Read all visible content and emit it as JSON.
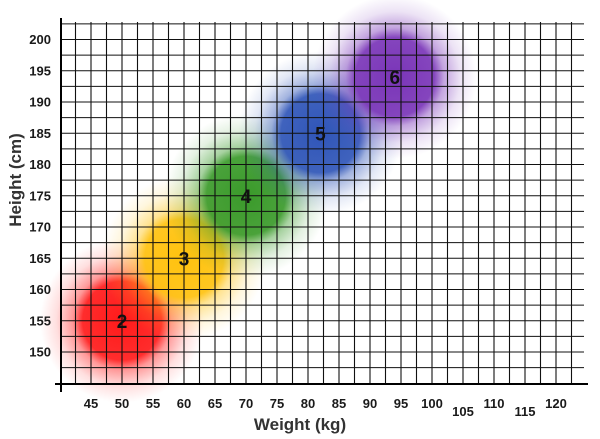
{
  "chart_data": {
    "type": "scatter",
    "title": "",
    "xlabel": "Weight (kg)",
    "ylabel": "Height (cm)",
    "xlim": [
      40,
      125
    ],
    "ylim": [
      145,
      202
    ],
    "grid": true,
    "x_ticks": [
      45,
      50,
      55,
      60,
      65,
      70,
      75,
      80,
      85,
      90,
      95,
      100,
      105,
      110,
      115,
      120
    ],
    "y_ticks": [
      150,
      155,
      160,
      165,
      170,
      175,
      180,
      185,
      190,
      195,
      200
    ],
    "points": [
      {
        "label": "2",
        "x": 50,
        "y": 155,
        "color": "#ff1a1a"
      },
      {
        "label": "3",
        "x": 60,
        "y": 165,
        "color": "#ffc20e"
      },
      {
        "label": "4",
        "x": 70,
        "y": 175,
        "color": "#3a9a2a"
      },
      {
        "label": "5",
        "x": 82,
        "y": 185,
        "color": "#2f55b8"
      },
      {
        "label": "6",
        "x": 94,
        "y": 194,
        "color": "#7a35b8"
      }
    ]
  }
}
